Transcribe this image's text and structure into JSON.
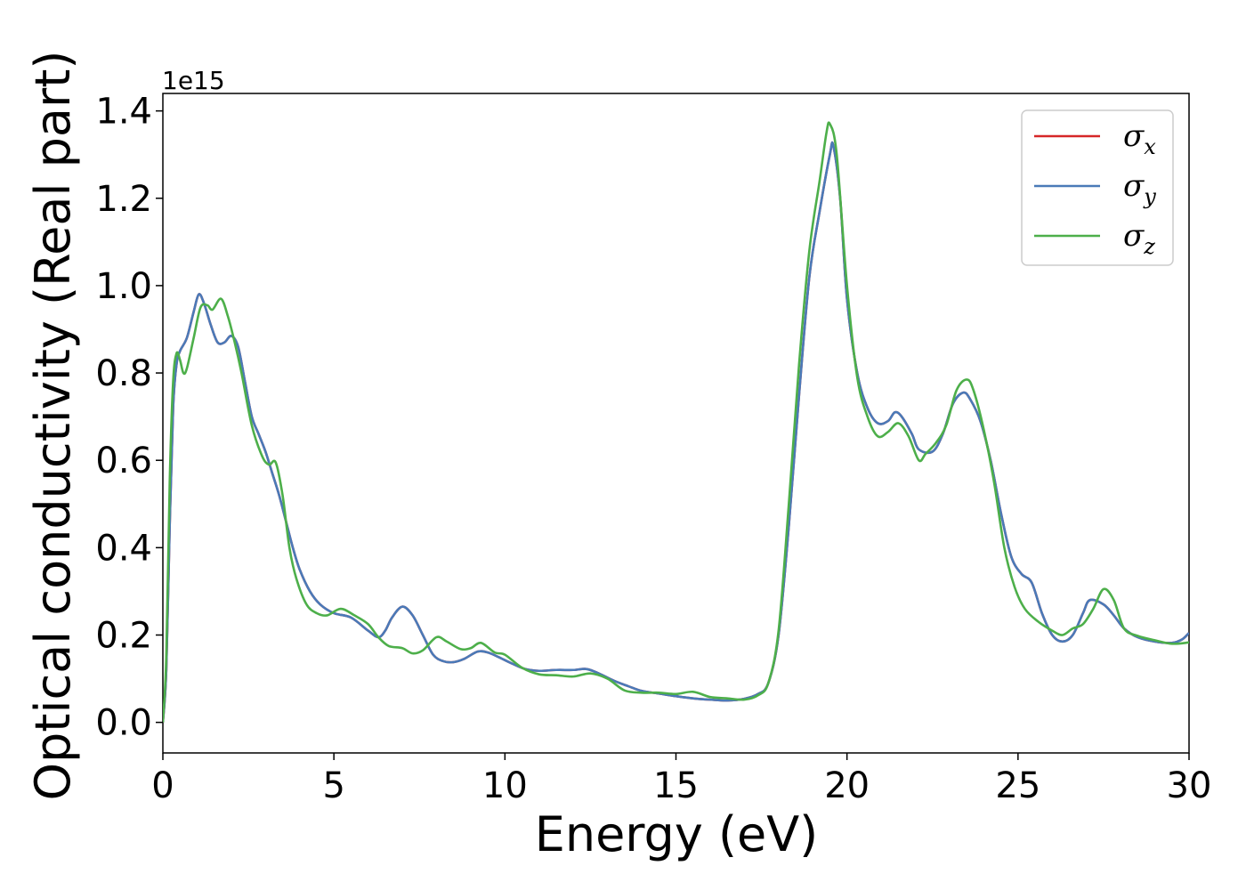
{
  "chart_data": {
    "type": "line",
    "xlabel": "Energy (eV)",
    "ylabel": "Optical conductivity (Real part)",
    "y_offset_label": "1e15",
    "xlim": [
      0,
      30
    ],
    "ylim": [
      -0.07,
      1.44
    ],
    "x_ticks": [
      0,
      5,
      10,
      15,
      20,
      25,
      30
    ],
    "y_ticks": [
      0.0,
      0.2,
      0.4,
      0.6,
      0.8,
      1.0,
      1.2,
      1.4
    ],
    "x_tick_labels": [
      "0",
      "5",
      "10",
      "15",
      "20",
      "25",
      "30"
    ],
    "y_tick_labels": [
      "0.0",
      "0.2",
      "0.4",
      "0.6",
      "0.8",
      "1.0",
      "1.2",
      "1.4"
    ],
    "grid": false,
    "legend_position": "top-right",
    "series": [
      {
        "name": "σx",
        "legend_symbol": "σ",
        "legend_subscript": "x",
        "color": "#d62728",
        "points": [
          [
            0,
            0.0
          ],
          [
            0.1,
            0.12
          ],
          [
            0.2,
            0.45
          ],
          [
            0.3,
            0.72
          ],
          [
            0.4,
            0.82
          ],
          [
            0.5,
            0.85
          ],
          [
            0.7,
            0.88
          ],
          [
            0.9,
            0.94
          ],
          [
            1.05,
            0.98
          ],
          [
            1.2,
            0.96
          ],
          [
            1.4,
            0.91
          ],
          [
            1.6,
            0.87
          ],
          [
            1.8,
            0.87
          ],
          [
            2.0,
            0.885
          ],
          [
            2.2,
            0.86
          ],
          [
            2.4,
            0.78
          ],
          [
            2.6,
            0.7
          ],
          [
            2.8,
            0.66
          ],
          [
            3.0,
            0.62
          ],
          [
            3.2,
            0.57
          ],
          [
            3.4,
            0.52
          ],
          [
            3.6,
            0.46
          ],
          [
            3.8,
            0.4
          ],
          [
            4.0,
            0.35
          ],
          [
            4.3,
            0.3
          ],
          [
            4.6,
            0.27
          ],
          [
            5.0,
            0.25
          ],
          [
            5.5,
            0.24
          ],
          [
            6.0,
            0.21
          ],
          [
            6.3,
            0.195
          ],
          [
            6.5,
            0.21
          ],
          [
            6.7,
            0.24
          ],
          [
            7.0,
            0.265
          ],
          [
            7.3,
            0.245
          ],
          [
            7.6,
            0.2
          ],
          [
            7.9,
            0.155
          ],
          [
            8.2,
            0.14
          ],
          [
            8.5,
            0.138
          ],
          [
            8.8,
            0.145
          ],
          [
            9.2,
            0.162
          ],
          [
            9.5,
            0.16
          ],
          [
            9.8,
            0.15
          ],
          [
            10.2,
            0.135
          ],
          [
            10.6,
            0.122
          ],
          [
            11.0,
            0.118
          ],
          [
            11.5,
            0.12
          ],
          [
            12.0,
            0.12
          ],
          [
            12.4,
            0.122
          ],
          [
            12.8,
            0.11
          ],
          [
            13.2,
            0.095
          ],
          [
            13.6,
            0.083
          ],
          [
            14.0,
            0.072
          ],
          [
            14.5,
            0.066
          ],
          [
            15.0,
            0.06
          ],
          [
            15.5,
            0.055
          ],
          [
            16.0,
            0.052
          ],
          [
            16.5,
            0.05
          ],
          [
            17.0,
            0.054
          ],
          [
            17.4,
            0.065
          ],
          [
            17.7,
            0.09
          ],
          [
            18.0,
            0.2
          ],
          [
            18.3,
            0.45
          ],
          [
            18.6,
            0.75
          ],
          [
            18.9,
            1.02
          ],
          [
            19.2,
            1.17
          ],
          [
            19.5,
            1.3
          ],
          [
            19.6,
            1.32
          ],
          [
            19.8,
            1.2
          ],
          [
            20.0,
            0.97
          ],
          [
            20.3,
            0.8
          ],
          [
            20.6,
            0.72
          ],
          [
            20.9,
            0.685
          ],
          [
            21.2,
            0.69
          ],
          [
            21.4,
            0.71
          ],
          [
            21.6,
            0.7
          ],
          [
            21.9,
            0.66
          ],
          [
            22.1,
            0.625
          ],
          [
            22.5,
            0.62
          ],
          [
            22.8,
            0.66
          ],
          [
            23.1,
            0.73
          ],
          [
            23.4,
            0.755
          ],
          [
            23.6,
            0.74
          ],
          [
            23.9,
            0.69
          ],
          [
            24.2,
            0.6
          ],
          [
            24.5,
            0.48
          ],
          [
            24.8,
            0.38
          ],
          [
            25.1,
            0.34
          ],
          [
            25.4,
            0.32
          ],
          [
            25.7,
            0.25
          ],
          [
            26.0,
            0.2
          ],
          [
            26.3,
            0.185
          ],
          [
            26.6,
            0.2
          ],
          [
            26.9,
            0.25
          ],
          [
            27.1,
            0.28
          ],
          [
            27.5,
            0.27
          ],
          [
            27.8,
            0.245
          ],
          [
            28.1,
            0.215
          ],
          [
            28.5,
            0.195
          ],
          [
            29.0,
            0.185
          ],
          [
            29.5,
            0.182
          ],
          [
            29.8,
            0.19
          ],
          [
            30.0,
            0.205
          ]
        ]
      },
      {
        "name": "σy",
        "legend_symbol": "σ",
        "legend_subscript": "y",
        "color": "#4a7ab8",
        "points": [
          [
            0,
            0.0
          ],
          [
            0.1,
            0.12
          ],
          [
            0.2,
            0.45
          ],
          [
            0.3,
            0.72
          ],
          [
            0.4,
            0.82
          ],
          [
            0.5,
            0.85
          ],
          [
            0.7,
            0.88
          ],
          [
            0.9,
            0.94
          ],
          [
            1.05,
            0.98
          ],
          [
            1.2,
            0.96
          ],
          [
            1.4,
            0.91
          ],
          [
            1.6,
            0.87
          ],
          [
            1.8,
            0.87
          ],
          [
            2.0,
            0.885
          ],
          [
            2.2,
            0.86
          ],
          [
            2.4,
            0.78
          ],
          [
            2.6,
            0.7
          ],
          [
            2.8,
            0.66
          ],
          [
            3.0,
            0.62
          ],
          [
            3.2,
            0.57
          ],
          [
            3.4,
            0.52
          ],
          [
            3.6,
            0.46
          ],
          [
            3.8,
            0.4
          ],
          [
            4.0,
            0.35
          ],
          [
            4.3,
            0.3
          ],
          [
            4.6,
            0.27
          ],
          [
            5.0,
            0.25
          ],
          [
            5.5,
            0.24
          ],
          [
            6.0,
            0.21
          ],
          [
            6.3,
            0.195
          ],
          [
            6.5,
            0.21
          ],
          [
            6.7,
            0.24
          ],
          [
            7.0,
            0.265
          ],
          [
            7.3,
            0.245
          ],
          [
            7.6,
            0.2
          ],
          [
            7.9,
            0.155
          ],
          [
            8.2,
            0.14
          ],
          [
            8.5,
            0.138
          ],
          [
            8.8,
            0.145
          ],
          [
            9.2,
            0.162
          ],
          [
            9.5,
            0.16
          ],
          [
            9.8,
            0.15
          ],
          [
            10.2,
            0.135
          ],
          [
            10.6,
            0.122
          ],
          [
            11.0,
            0.118
          ],
          [
            11.5,
            0.12
          ],
          [
            12.0,
            0.12
          ],
          [
            12.4,
            0.122
          ],
          [
            12.8,
            0.11
          ],
          [
            13.2,
            0.095
          ],
          [
            13.6,
            0.083
          ],
          [
            14.0,
            0.072
          ],
          [
            14.5,
            0.066
          ],
          [
            15.0,
            0.06
          ],
          [
            15.5,
            0.055
          ],
          [
            16.0,
            0.052
          ],
          [
            16.5,
            0.05
          ],
          [
            17.0,
            0.054
          ],
          [
            17.4,
            0.065
          ],
          [
            17.7,
            0.09
          ],
          [
            18.0,
            0.2
          ],
          [
            18.3,
            0.45
          ],
          [
            18.6,
            0.75
          ],
          [
            18.9,
            1.02
          ],
          [
            19.2,
            1.17
          ],
          [
            19.5,
            1.3
          ],
          [
            19.6,
            1.32
          ],
          [
            19.8,
            1.2
          ],
          [
            20.0,
            0.97
          ],
          [
            20.3,
            0.8
          ],
          [
            20.6,
            0.72
          ],
          [
            20.9,
            0.685
          ],
          [
            21.2,
            0.69
          ],
          [
            21.4,
            0.71
          ],
          [
            21.6,
            0.7
          ],
          [
            21.9,
            0.66
          ],
          [
            22.1,
            0.625
          ],
          [
            22.5,
            0.62
          ],
          [
            22.8,
            0.66
          ],
          [
            23.1,
            0.73
          ],
          [
            23.4,
            0.755
          ],
          [
            23.6,
            0.74
          ],
          [
            23.9,
            0.69
          ],
          [
            24.2,
            0.6
          ],
          [
            24.5,
            0.48
          ],
          [
            24.8,
            0.38
          ],
          [
            25.1,
            0.34
          ],
          [
            25.4,
            0.32
          ],
          [
            25.7,
            0.25
          ],
          [
            26.0,
            0.2
          ],
          [
            26.3,
            0.185
          ],
          [
            26.6,
            0.2
          ],
          [
            26.9,
            0.25
          ],
          [
            27.1,
            0.28
          ],
          [
            27.5,
            0.27
          ],
          [
            27.8,
            0.245
          ],
          [
            28.1,
            0.215
          ],
          [
            28.5,
            0.195
          ],
          [
            29.0,
            0.185
          ],
          [
            29.5,
            0.182
          ],
          [
            29.8,
            0.19
          ],
          [
            30.0,
            0.205
          ]
        ]
      },
      {
        "name": "σz",
        "legend_symbol": "σ",
        "legend_subscript": "z",
        "color": "#4daf4a",
        "points": [
          [
            0,
            0.0
          ],
          [
            0.1,
            0.15
          ],
          [
            0.2,
            0.55
          ],
          [
            0.3,
            0.78
          ],
          [
            0.4,
            0.845
          ],
          [
            0.5,
            0.83
          ],
          [
            0.6,
            0.8
          ],
          [
            0.7,
            0.81
          ],
          [
            0.9,
            0.88
          ],
          [
            1.1,
            0.95
          ],
          [
            1.3,
            0.955
          ],
          [
            1.45,
            0.945
          ],
          [
            1.7,
            0.97
          ],
          [
            1.9,
            0.93
          ],
          [
            2.1,
            0.87
          ],
          [
            2.3,
            0.8
          ],
          [
            2.6,
            0.68
          ],
          [
            2.9,
            0.61
          ],
          [
            3.1,
            0.59
          ],
          [
            3.3,
            0.595
          ],
          [
            3.5,
            0.52
          ],
          [
            3.7,
            0.4
          ],
          [
            3.9,
            0.33
          ],
          [
            4.2,
            0.27
          ],
          [
            4.5,
            0.25
          ],
          [
            4.8,
            0.245
          ],
          [
            5.2,
            0.26
          ],
          [
            5.6,
            0.245
          ],
          [
            6.0,
            0.225
          ],
          [
            6.3,
            0.195
          ],
          [
            6.6,
            0.175
          ],
          [
            7.0,
            0.17
          ],
          [
            7.3,
            0.158
          ],
          [
            7.6,
            0.165
          ],
          [
            8.0,
            0.195
          ],
          [
            8.3,
            0.185
          ],
          [
            8.7,
            0.168
          ],
          [
            9.0,
            0.17
          ],
          [
            9.3,
            0.182
          ],
          [
            9.7,
            0.16
          ],
          [
            10.0,
            0.155
          ],
          [
            10.5,
            0.125
          ],
          [
            11.0,
            0.11
          ],
          [
            11.5,
            0.108
          ],
          [
            12.0,
            0.105
          ],
          [
            12.5,
            0.112
          ],
          [
            13.0,
            0.1
          ],
          [
            13.5,
            0.073
          ],
          [
            14.0,
            0.068
          ],
          [
            14.5,
            0.068
          ],
          [
            15.0,
            0.065
          ],
          [
            15.5,
            0.07
          ],
          [
            16.0,
            0.058
          ],
          [
            16.5,
            0.055
          ],
          [
            17.0,
            0.052
          ],
          [
            17.4,
            0.062
          ],
          [
            17.7,
            0.09
          ],
          [
            18.0,
            0.21
          ],
          [
            18.3,
            0.5
          ],
          [
            18.6,
            0.82
          ],
          [
            18.9,
            1.08
          ],
          [
            19.2,
            1.24
          ],
          [
            19.4,
            1.35
          ],
          [
            19.5,
            1.37
          ],
          [
            19.7,
            1.3
          ],
          [
            20.0,
            1.0
          ],
          [
            20.3,
            0.79
          ],
          [
            20.6,
            0.7
          ],
          [
            20.9,
            0.655
          ],
          [
            21.2,
            0.665
          ],
          [
            21.5,
            0.685
          ],
          [
            21.8,
            0.655
          ],
          [
            22.1,
            0.6
          ],
          [
            22.3,
            0.615
          ],
          [
            22.6,
            0.64
          ],
          [
            22.9,
            0.68
          ],
          [
            23.2,
            0.76
          ],
          [
            23.5,
            0.785
          ],
          [
            23.7,
            0.76
          ],
          [
            24.0,
            0.67
          ],
          [
            24.3,
            0.55
          ],
          [
            24.6,
            0.4
          ],
          [
            24.9,
            0.31
          ],
          [
            25.2,
            0.26
          ],
          [
            25.6,
            0.23
          ],
          [
            26.0,
            0.21
          ],
          [
            26.3,
            0.2
          ],
          [
            26.6,
            0.215
          ],
          [
            26.9,
            0.225
          ],
          [
            27.2,
            0.26
          ],
          [
            27.5,
            0.305
          ],
          [
            27.8,
            0.28
          ],
          [
            28.1,
            0.215
          ],
          [
            28.5,
            0.198
          ],
          [
            29.0,
            0.188
          ],
          [
            29.5,
            0.18
          ],
          [
            30.0,
            0.183
          ]
        ]
      }
    ]
  }
}
